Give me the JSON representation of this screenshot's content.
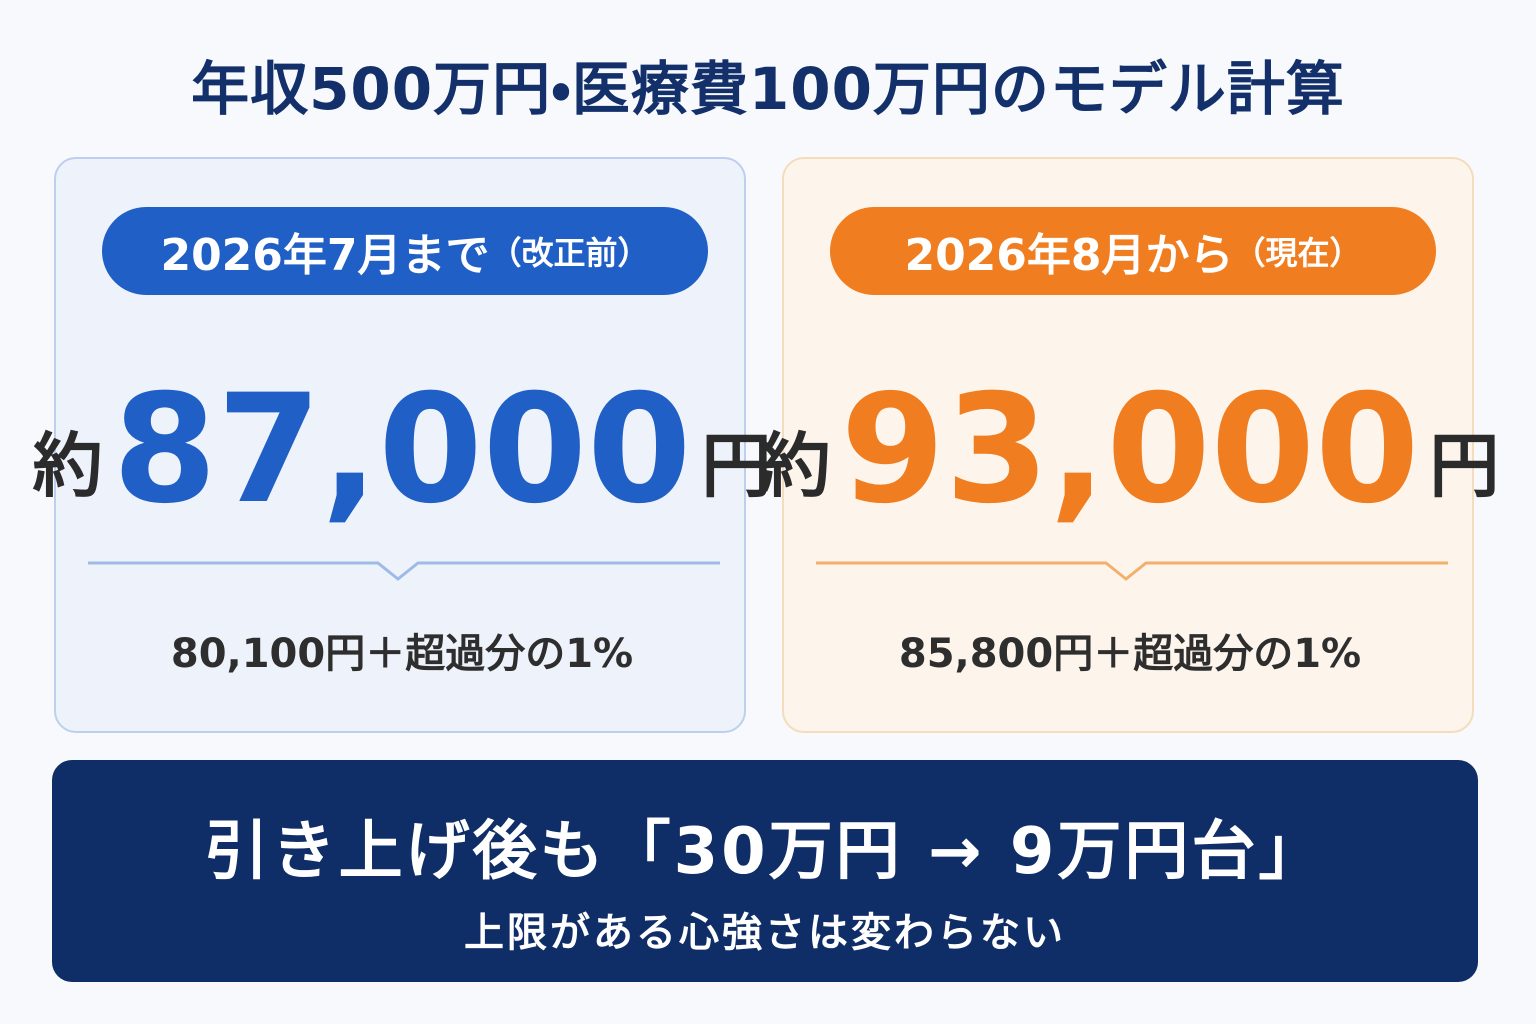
{
  "title": "年収500万円・医療費100万円のモデル計算",
  "cards": [
    {
      "badge_main": "2026年7月まで",
      "badge_note": "（改正前）",
      "prefix": "約",
      "amount": "87,000",
      "unit": "円",
      "formula": "80,100円＋超過分の1%"
    },
    {
      "badge_main": "2026年8月から",
      "badge_note": "（現在）",
      "prefix": "約",
      "amount": "93,000",
      "unit": "円",
      "formula": "85,800円＋超過分の1%"
    }
  ],
  "banner": {
    "headline": "引き上げ後も「30万円 → 9万円台」",
    "subline": "上限がある心強さは変わらない"
  }
}
